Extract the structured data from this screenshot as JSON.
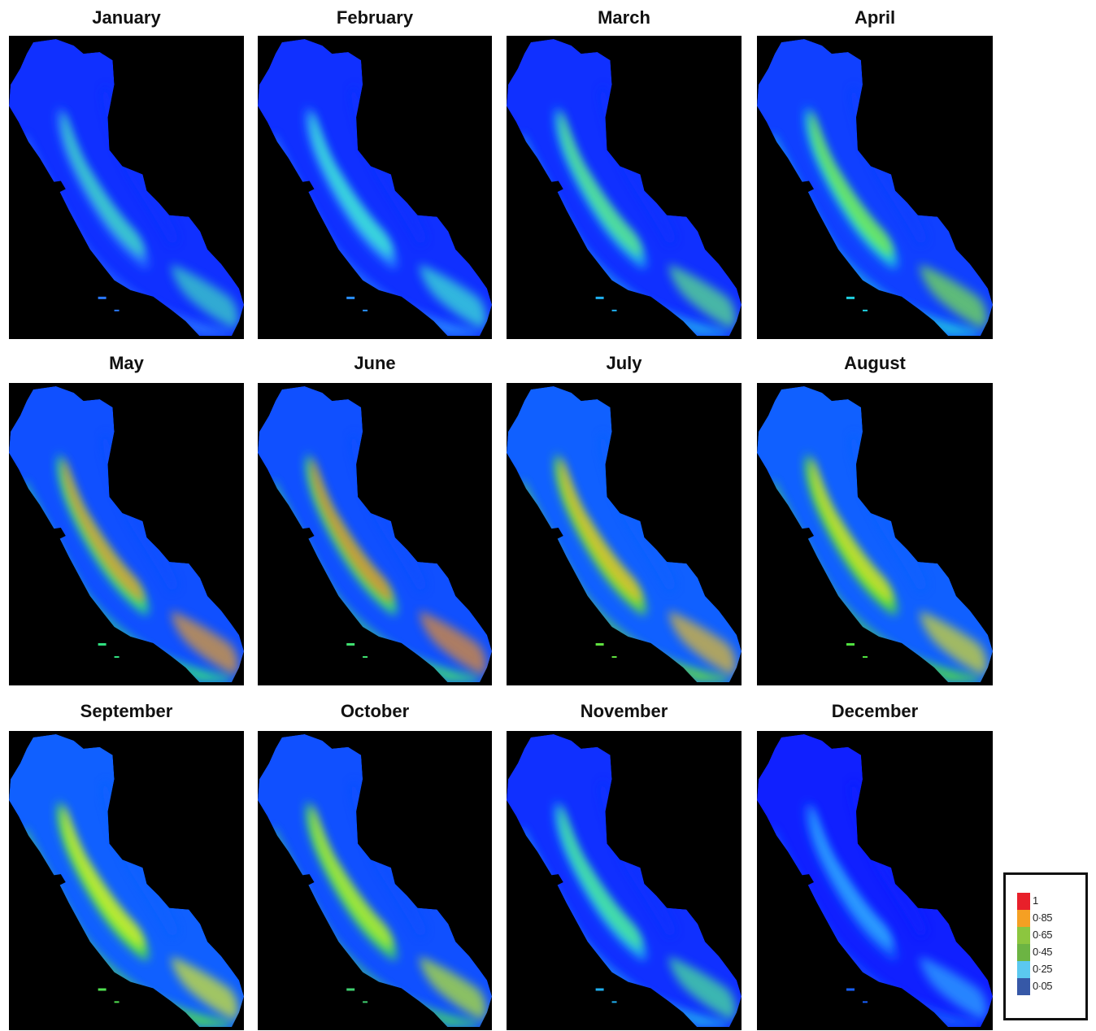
{
  "months": [
    {
      "name": "January",
      "low": "#1030ff",
      "mid": "#2a78ff",
      "high": "#40e0c0"
    },
    {
      "name": "February",
      "low": "#1030ff",
      "mid": "#2a90ff",
      "high": "#40f0d0"
    },
    {
      "name": "March",
      "low": "#1030ff",
      "mid": "#20b0f0",
      "high": "#60f080"
    },
    {
      "name": "April",
      "low": "#1040ff",
      "mid": "#20d0e0",
      "high": "#80f040"
    },
    {
      "name": "May",
      "low": "#1050ff",
      "mid": "#30e080",
      "high": "#f0a020"
    },
    {
      "name": "June",
      "low": "#1050ff",
      "mid": "#40e070",
      "high": "#f09020"
    },
    {
      "name": "July",
      "low": "#1060ff",
      "mid": "#60e040",
      "high": "#f0c020"
    },
    {
      "name": "August",
      "low": "#1060ff",
      "mid": "#50e040",
      "high": "#e0e020"
    },
    {
      "name": "September",
      "low": "#1060ff",
      "mid": "#50e050",
      "high": "#e0f020"
    },
    {
      "name": "October",
      "low": "#1050ff",
      "mid": "#40d070",
      "high": "#c0f020"
    },
    {
      "name": "November",
      "low": "#1030ff",
      "mid": "#20b0f0",
      "high": "#50f090"
    },
    {
      "name": "December",
      "low": "#1020ff",
      "mid": "#1860ff",
      "high": "#30b0ff"
    }
  ],
  "legend": [
    {
      "label": "1",
      "color": "#e8202a"
    },
    {
      "label": "0·85",
      "color": "#f5a023"
    },
    {
      "label": "0·65",
      "color": "#8cc63f"
    },
    {
      "label": "0·45",
      "color": "#6cb443"
    },
    {
      "label": "0·25",
      "color": "#5bc8ef"
    },
    {
      "label": "0·05",
      "color": "#3658a7"
    }
  ]
}
